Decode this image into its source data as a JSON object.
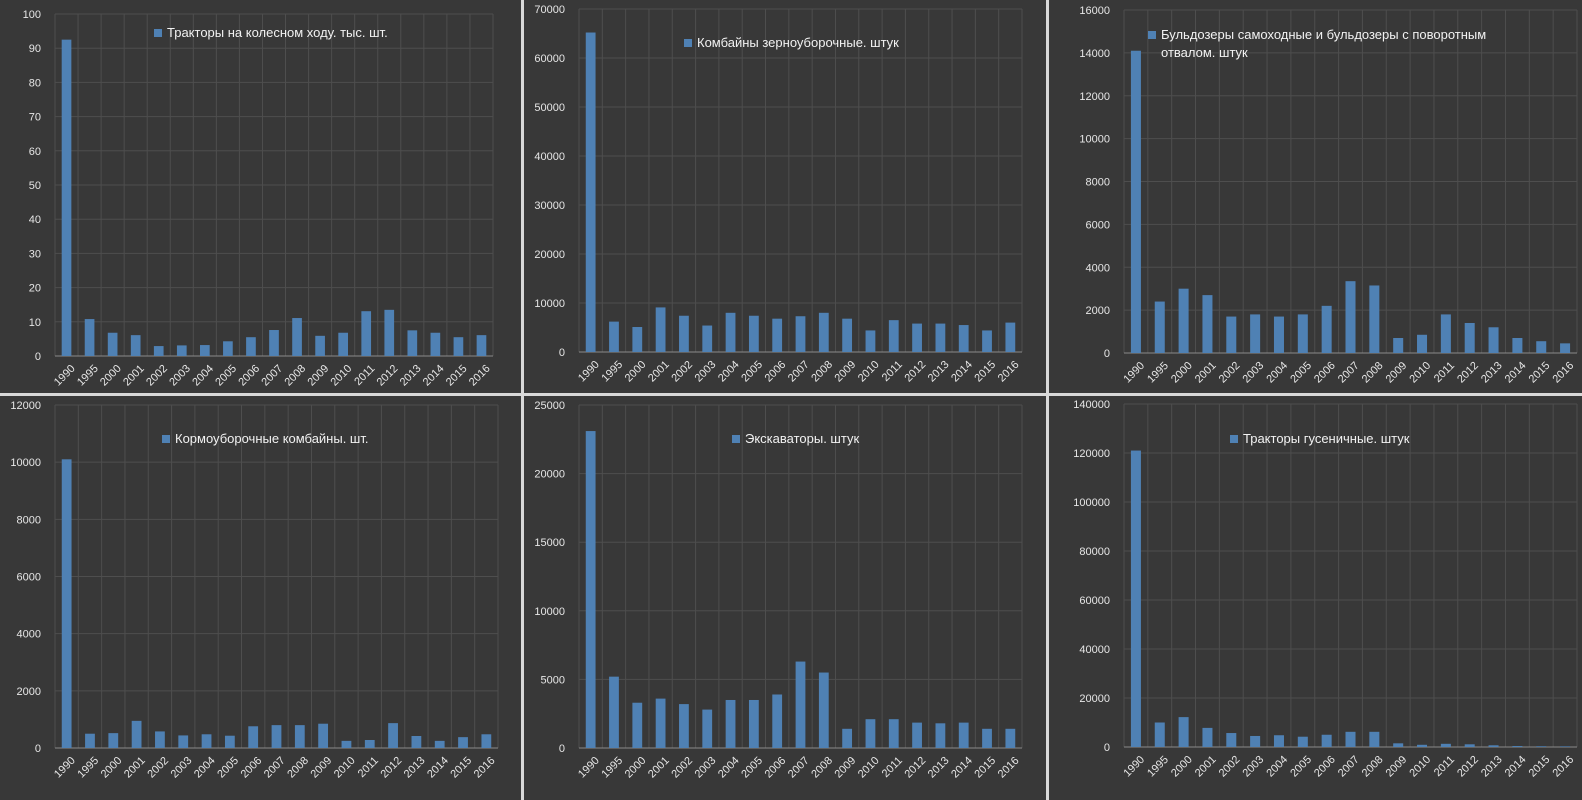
{
  "categories": [
    "1990",
    "1995",
    "2000",
    "2001",
    "2002",
    "2003",
    "2004",
    "2005",
    "2006",
    "2007",
    "2008",
    "2009",
    "2010",
    "2011",
    "2012",
    "2013",
    "2014",
    "2015",
    "2016"
  ],
  "colors": {
    "bar": "#4f81b4",
    "grid": "#4e4e4e",
    "panel": "#383838",
    "text": "#e6e6e6"
  },
  "chart_data": [
    {
      "type": "bar",
      "legend_lines": [
        "Тракторы на колесном ходу. тыс. шт."
      ],
      "series_name": "Тракторы на колесном ходу. тыс. шт.",
      "ylim": [
        0,
        100
      ],
      "yticks": [
        0,
        10,
        20,
        30,
        40,
        50,
        60,
        70,
        80,
        90,
        100
      ],
      "values": [
        92.5,
        10.8,
        6.8,
        6.1,
        2.9,
        3.1,
        3.2,
        4.3,
        5.5,
        7.6,
        11.1,
        5.9,
        6.8,
        13.1,
        13.5,
        7.5,
        6.8,
        5.5,
        6.1
      ]
    },
    {
      "type": "bar",
      "legend_lines": [
        "Комбайны зерноуборочные. штук"
      ],
      "series_name": "Комбайны зерноуборочные. штук",
      "ylim": [
        0,
        70000
      ],
      "yticks": [
        0,
        10000,
        20000,
        30000,
        40000,
        50000,
        60000,
        70000
      ],
      "values": [
        65200,
        6200,
        5100,
        9100,
        7400,
        5400,
        8000,
        7400,
        6800,
        7300,
        8000,
        6800,
        4400,
        6500,
        5800,
        5800,
        5500,
        4400,
        6000
      ]
    },
    {
      "type": "bar",
      "legend_lines": [
        "Бульдозеры самоходные и бульдозеры с поворотным",
        "отвалом. штук"
      ],
      "series_name": "Бульдозеры самоходные и бульдозеры с поворотным отвалом. штук",
      "ylim": [
        0,
        16000
      ],
      "yticks": [
        0,
        2000,
        4000,
        6000,
        8000,
        10000,
        12000,
        14000,
        16000
      ],
      "values": [
        14100,
        2400,
        3000,
        2700,
        1700,
        1800,
        1700,
        1800,
        2200,
        3350,
        3150,
        700,
        850,
        1800,
        1400,
        1200,
        700,
        550,
        450
      ]
    },
    {
      "type": "bar",
      "legend_lines": [
        "Кормоуборочные комбайны. шт."
      ],
      "series_name": "Кормоуборочные комбайны. шт.",
      "ylim": [
        0,
        12000
      ],
      "yticks": [
        0,
        2000,
        4000,
        6000,
        8000,
        10000,
        12000
      ],
      "values": [
        10100,
        500,
        520,
        950,
        580,
        440,
        480,
        430,
        760,
        800,
        800,
        850,
        250,
        280,
        870,
        420,
        250,
        380,
        480
      ]
    },
    {
      "type": "bar",
      "legend_lines": [
        "Экскаваторы. штук"
      ],
      "series_name": "Экскаваторы. штук",
      "ylim": [
        0,
        25000
      ],
      "yticks": [
        0,
        5000,
        10000,
        15000,
        20000,
        25000
      ],
      "values": [
        23100,
        5200,
        3300,
        3600,
        3200,
        2800,
        3500,
        3500,
        3900,
        6300,
        5500,
        1400,
        2100,
        2100,
        1850,
        1800,
        1850,
        1400,
        1400
      ]
    },
    {
      "type": "bar",
      "legend_lines": [
        "Тракторы гусеничные. штук"
      ],
      "series_name": "Тракторы гусеничные. штук",
      "ylim": [
        0,
        140000
      ],
      "yticks": [
        0,
        20000,
        40000,
        60000,
        80000,
        100000,
        120000,
        140000
      ],
      "values": [
        121000,
        10000,
        12200,
        7800,
        5700,
        4500,
        4800,
        4200,
        5000,
        6200,
        6200,
        1500,
        900,
        1300,
        1100,
        700,
        400,
        300,
        250
      ]
    }
  ]
}
